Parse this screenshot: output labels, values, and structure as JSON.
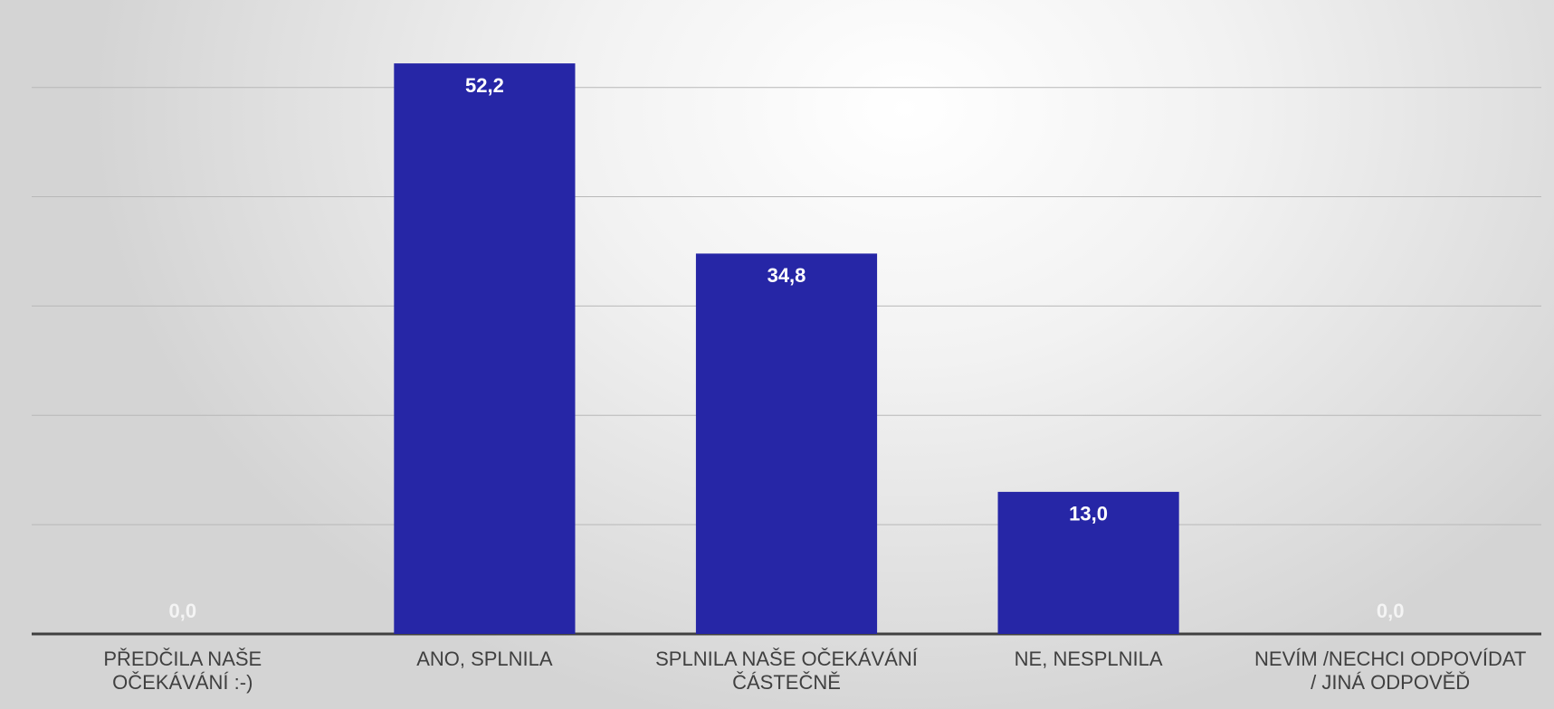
{
  "chart_data": {
    "type": "bar",
    "categories": [
      "PŘEDČILA NAŠE\nOČEKÁVÁNÍ :-)",
      "ANO, SPLNILA",
      "SPLNILA NAŠE OČEKÁVÁNÍ\nČÁSTEČNĚ",
      "NE, NESPLNILA",
      "NEVÍM /NECHCI ODPOVÍDAT\n/ JINÁ ODPOVĚĎ"
    ],
    "values": [
      0,
      52.2,
      34.8,
      13,
      0
    ],
    "value_labels": [
      "0,0",
      "52,2",
      "34,8",
      "13,0",
      "0,0"
    ],
    "color": "#2626a6",
    "ylim": [
      0,
      58
    ],
    "yticks": [
      0,
      10,
      20,
      30,
      40,
      50
    ],
    "grid": true
  }
}
